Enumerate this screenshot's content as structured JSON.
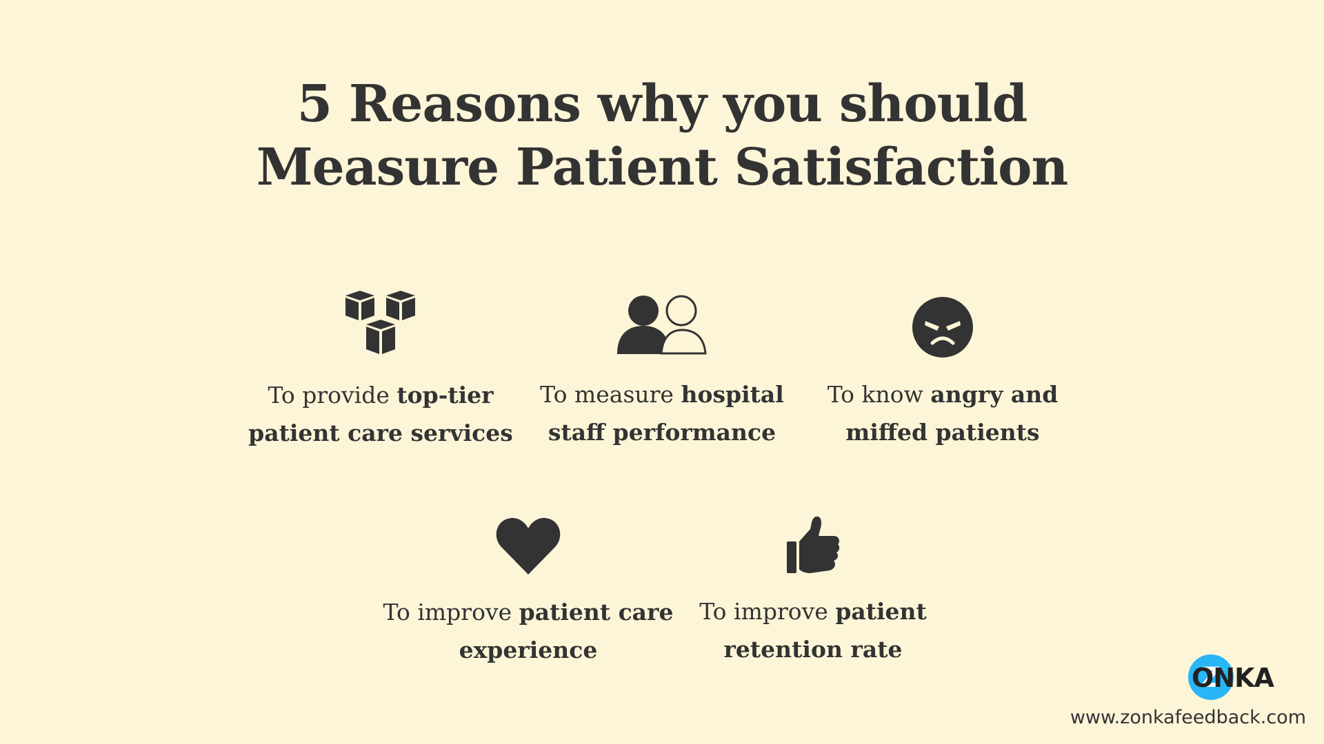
{
  "title": {
    "line1": "5 Reasons why you should",
    "line2": "Measure Patient Satisfaction"
  },
  "reasons": [
    {
      "icon": "cubes-icon",
      "line1_plain": "To provide ",
      "line1_bold": "top-tier",
      "line2_plain": "",
      "line2_bold": "patient care services"
    },
    {
      "icon": "users-icon",
      "line1_plain": "To measure ",
      "line1_bold": "hospital",
      "line2_plain": "",
      "line2_bold": "staff performance"
    },
    {
      "icon": "angry-face-icon",
      "line1_plain": "To know ",
      "line1_bold": "angry and",
      "line2_plain": "",
      "line2_bold": "miffed patients"
    },
    {
      "icon": "heart-icon",
      "line1_plain": "To improve ",
      "line1_bold": "patient care",
      "line2_plain": "",
      "line2_bold": "experience"
    },
    {
      "icon": "thumbs-up-icon",
      "line1_plain": "To improve ",
      "line1_bold": "patient",
      "line2_plain": "",
      "line2_bold": "retention rate"
    }
  ],
  "brand": {
    "logo_text": "ONKA",
    "logo_letter": "Z",
    "logo_color": "#29b6f6",
    "url": "www.zonkafeedback.com"
  },
  "colors": {
    "background": "#fdf5d8",
    "text": "#333333"
  }
}
